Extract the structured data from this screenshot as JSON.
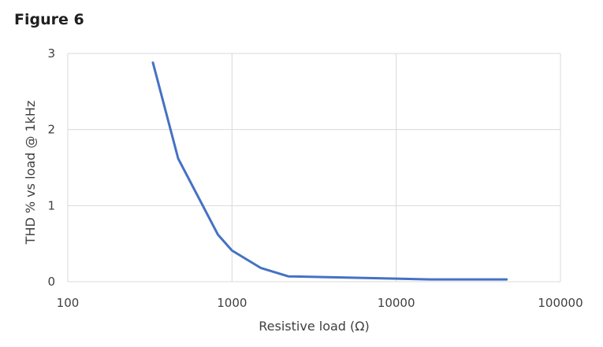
{
  "figure": {
    "title": "Figure 6"
  },
  "chart_data": {
    "type": "line",
    "title": "",
    "xlabel": "Resistive load (Ω)",
    "ylabel": "THD % vs load @ 1kHz",
    "x_scale": "log",
    "xlim": [
      100,
      100000
    ],
    "ylim": [
      0,
      3
    ],
    "x_ticks": [
      100,
      1000,
      10000,
      100000
    ],
    "x_tick_labels": [
      "100",
      "1000",
      "10000",
      "100000"
    ],
    "y_ticks": [
      0,
      1,
      2,
      3
    ],
    "y_tick_labels": [
      "0",
      "1",
      "2",
      "3"
    ],
    "grid": true,
    "legend": "none",
    "series": [
      {
        "color": "#4472c4",
        "x": [
          330,
          470,
          820,
          1000,
          1500,
          2200,
          10000,
          16000,
          47000
        ],
        "y": [
          2.88,
          1.62,
          0.62,
          0.41,
          0.18,
          0.07,
          0.04,
          0.03,
          0.03
        ]
      }
    ],
    "colors": {
      "grid": "#d9d9d9",
      "line": "#4472c4"
    }
  }
}
